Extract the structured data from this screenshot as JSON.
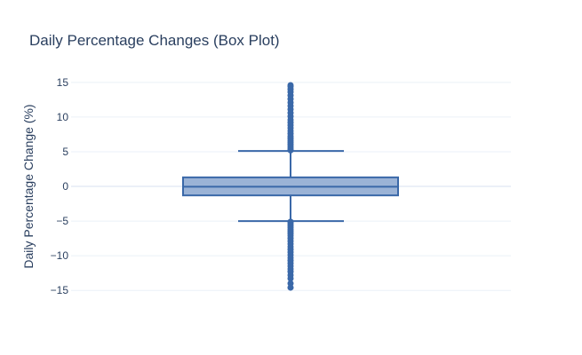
{
  "chart_data": {
    "type": "box",
    "title": "Daily Percentage Changes (Box Plot)",
    "xlabel": "",
    "ylabel": "Daily Percentage Change (%)",
    "ylim": [
      -16,
      16
    ],
    "y_ticks": [
      -15,
      -10,
      -5,
      0,
      5,
      10,
      15
    ],
    "y_tick_labels": [
      "−15",
      "−10",
      "−5",
      "0",
      "5",
      "10",
      "15"
    ],
    "grid": true,
    "legend": "none",
    "box": {
      "q1": -1.3,
      "median": -0.05,
      "q3": 1.3,
      "lower_fence": -5.0,
      "upper_fence": 5.1,
      "outliers_upper": [
        5.2,
        5.4,
        5.7,
        6.0,
        6.3,
        6.6,
        6.9,
        7.2,
        7.6,
        8.0,
        8.4,
        8.8,
        9.2,
        9.6,
        10.1,
        10.6,
        11.1,
        11.6,
        12.1,
        12.6,
        13.1,
        13.6,
        14.0,
        14.4,
        14.6
      ],
      "outliers_lower": [
        -5.1,
        -5.3,
        -5.6,
        -5.9,
        -6.2,
        -6.5,
        -6.8,
        -7.1,
        -7.5,
        -7.9,
        -8.3,
        -8.7,
        -9.1,
        -9.5,
        -9.9,
        -10.3,
        -10.7,
        -11.1,
        -11.5,
        -11.9,
        -12.3,
        -12.8,
        -13.3,
        -14.0,
        -14.6
      ]
    }
  },
  "colors": {
    "box_line": "#3a68a8",
    "box_fill": "#9bb3d6",
    "text": "#2a3f5f",
    "grid": "#ebf0f8"
  }
}
